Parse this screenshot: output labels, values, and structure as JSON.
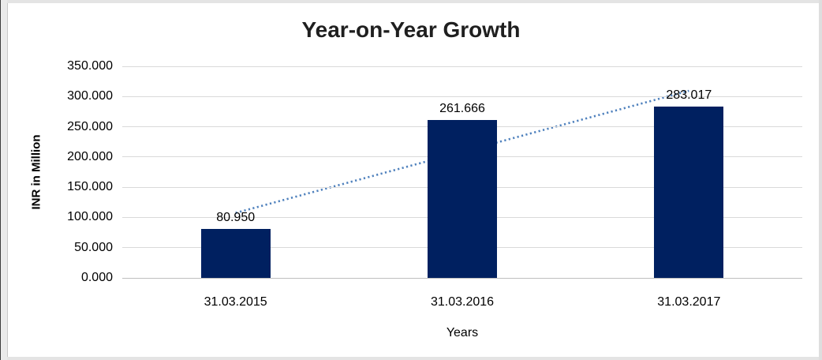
{
  "chart_data": {
    "type": "bar",
    "title": "Year-on-Year Growth",
    "xlabel": "Years",
    "ylabel": "INR in Million",
    "categories": [
      "31.03.2015",
      "31.03.2016",
      "31.03.2017"
    ],
    "values": [
      80.95,
      261.666,
      283.017
    ],
    "value_labels": [
      "80.950",
      "261.666",
      "283.017"
    ],
    "yticks": [
      0,
      50,
      100,
      150,
      200,
      250,
      300,
      350
    ],
    "ytick_labels": [
      "0.000",
      "50.000",
      "100.000",
      "150.000",
      "200.000",
      "250.000",
      "300.000",
      "350.000"
    ],
    "ylim": [
      0,
      350
    ],
    "grid": true,
    "legend_position": "none",
    "bar_color": "#002060",
    "trendline": {
      "type": "linear",
      "style": "dotted",
      "color": "#4f81bd"
    }
  }
}
